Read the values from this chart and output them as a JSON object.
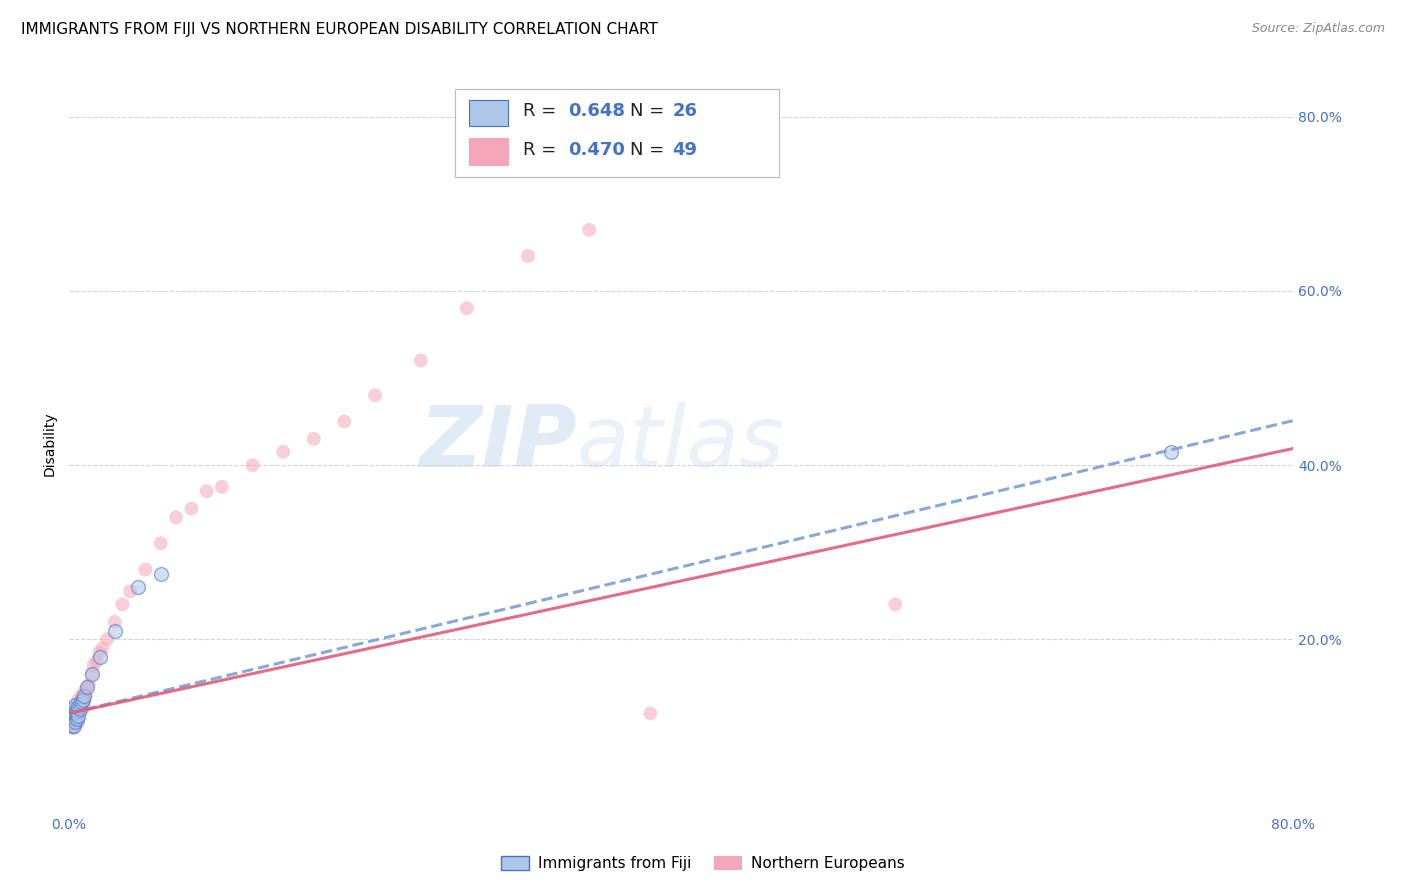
{
  "title": "IMMIGRANTS FROM FIJI VS NORTHERN EUROPEAN DISABILITY CORRELATION CHART",
  "source": "Source: ZipAtlas.com",
  "accent_color": "#4472c4",
  "ylabel": "Disability",
  "watermark_zip": "ZIP",
  "watermark_atlas": "atlas",
  "xlim": [
    0.0,
    0.8
  ],
  "ylim": [
    0.0,
    0.85
  ],
  "y_ticks_right": [
    0.0,
    0.2,
    0.4,
    0.6,
    0.8
  ],
  "y_tick_labels_right": [
    "",
    "20.0%",
    "40.0%",
    "60.0%",
    "80.0%"
  ],
  "fiji_color": "#aec6e8",
  "fiji_edge_color": "#4472c4",
  "northern_color": "#f4a7b9",
  "northern_edge_color": "#e05c7a",
  "fiji_line_color": "#7a9fd4",
  "northern_line_color": "#e05c7a",
  "fiji_R": 0.648,
  "fiji_N": 26,
  "northern_R": 0.47,
  "northern_N": 49,
  "fiji_intercept": 0.115,
  "fiji_slope": 0.42,
  "northern_intercept": 0.115,
  "northern_slope": 0.38,
  "fiji_points_x": [
    0.001,
    0.001,
    0.002,
    0.002,
    0.002,
    0.003,
    0.003,
    0.003,
    0.004,
    0.004,
    0.004,
    0.005,
    0.005,
    0.006,
    0.006,
    0.007,
    0.008,
    0.009,
    0.01,
    0.012,
    0.015,
    0.02,
    0.03,
    0.045,
    0.06,
    0.72
  ],
  "fiji_points_y": [
    0.105,
    0.115,
    0.1,
    0.11,
    0.12,
    0.1,
    0.11,
    0.118,
    0.105,
    0.115,
    0.125,
    0.108,
    0.118,
    0.112,
    0.122,
    0.12,
    0.128,
    0.13,
    0.135,
    0.145,
    0.16,
    0.18,
    0.21,
    0.26,
    0.275,
    0.415
  ],
  "northern_points_x": [
    0.001,
    0.001,
    0.002,
    0.002,
    0.003,
    0.003,
    0.004,
    0.004,
    0.005,
    0.005,
    0.006,
    0.006,
    0.007,
    0.007,
    0.008,
    0.008,
    0.009,
    0.01,
    0.01,
    0.011,
    0.012,
    0.013,
    0.015,
    0.016,
    0.018,
    0.02,
    0.022,
    0.025,
    0.03,
    0.035,
    0.04,
    0.05,
    0.06,
    0.07,
    0.08,
    0.09,
    0.1,
    0.12,
    0.14,
    0.16,
    0.18,
    0.2,
    0.23,
    0.26,
    0.3,
    0.34,
    0.38,
    0.54,
    0.01
  ],
  "northern_points_y": [
    0.1,
    0.11,
    0.105,
    0.118,
    0.098,
    0.115,
    0.108,
    0.122,
    0.112,
    0.125,
    0.105,
    0.13,
    0.115,
    0.125,
    0.118,
    0.135,
    0.128,
    0.122,
    0.14,
    0.135,
    0.145,
    0.148,
    0.16,
    0.17,
    0.175,
    0.185,
    0.19,
    0.2,
    0.22,
    0.24,
    0.255,
    0.28,
    0.31,
    0.34,
    0.35,
    0.37,
    0.375,
    0.4,
    0.415,
    0.43,
    0.45,
    0.48,
    0.52,
    0.58,
    0.64,
    0.67,
    0.115,
    0.24,
    0.13
  ],
  "background_color": "#ffffff",
  "grid_color": "#d0d0d0",
  "title_fontsize": 11,
  "axis_label_fontsize": 10,
  "tick_fontsize": 10,
  "marker_size": 10,
  "marker_alpha": 0.55,
  "line_width": 2.2
}
